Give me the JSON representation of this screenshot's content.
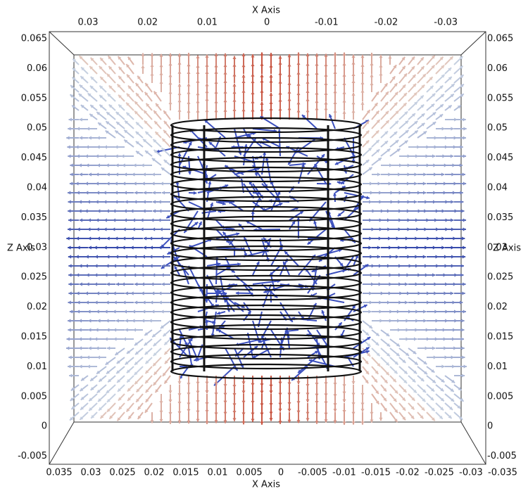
{
  "axes": {
    "top": {
      "title": "X Axis",
      "ticks": [
        0.03,
        0.02,
        0.01,
        0,
        -0.01,
        -0.02,
        -0.03
      ]
    },
    "bottom": {
      "title": "X Axis",
      "ticks": [
        0.035,
        0.03,
        0.025,
        0.02,
        0.015,
        0.01,
        0.005,
        0,
        -0.005,
        -0.01,
        -0.015,
        -0.02,
        -0.025,
        -0.03,
        -0.035
      ]
    },
    "left": {
      "title": "Z Axis",
      "ticks": [
        0.065,
        0.06,
        0.055,
        0.05,
        0.045,
        0.04,
        0.035,
        0.03,
        0.025,
        0.02,
        0.015,
        0.01,
        0.005,
        0,
        -0.005
      ]
    },
    "right": {
      "title": "Z Axis",
      "ticks": [
        0.065,
        0.06,
        0.055,
        0.05,
        0.045,
        0.04,
        0.035,
        0.03,
        0.025,
        0.02,
        0.015,
        0.01,
        0.005,
        0,
        -0.005
      ]
    }
  }
}
